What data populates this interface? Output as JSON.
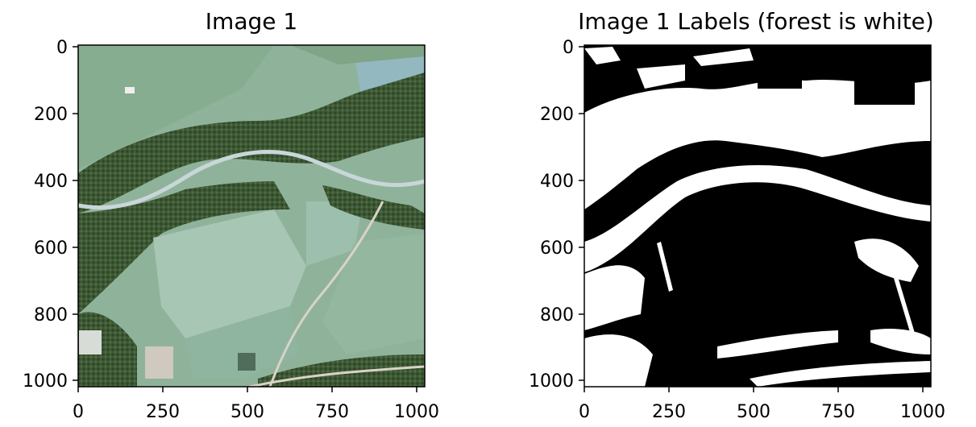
{
  "panels": [
    {
      "title": "Image 1",
      "content": "aerial photograph",
      "xticks": [
        "0",
        "250",
        "500",
        "750",
        "1000"
      ],
      "yticks": [
        "0",
        "200",
        "400",
        "600",
        "800",
        "1000"
      ]
    },
    {
      "title": "Image 1 Labels (forest is white)",
      "content": "binary forest mask",
      "xticks": [
        "0",
        "250",
        "500",
        "750",
        "1000"
      ],
      "yticks": [
        "0",
        "200",
        "400",
        "600",
        "800",
        "1000"
      ]
    }
  ],
  "colors": {
    "field": "#8fb39a",
    "field_light": "#a7c7b4",
    "forest": "#3f5b35",
    "river": "#c9d6d9",
    "road": "#d9d3c7",
    "mask_forest": "#ffffff",
    "mask_other": "#000000"
  }
}
